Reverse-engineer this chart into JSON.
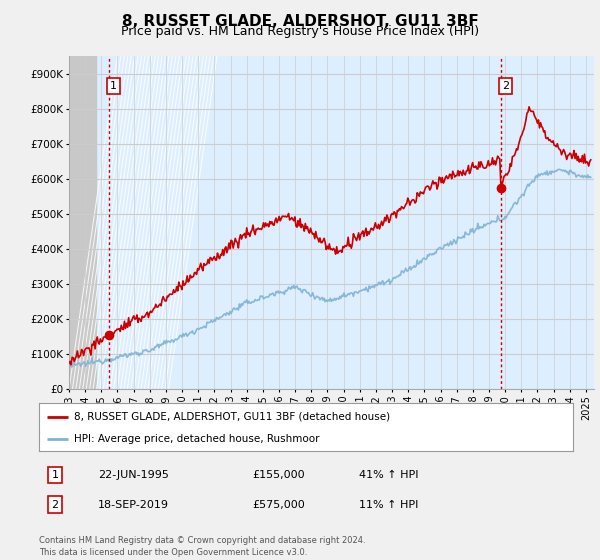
{
  "title": "8, RUSSET GLADE, ALDERSHOT, GU11 3BF",
  "subtitle": "Price paid vs. HM Land Registry's House Price Index (HPI)",
  "xlim_start": 1993.0,
  "xlim_end": 2025.5,
  "ylim": [
    0,
    950000
  ],
  "yticks": [
    0,
    100000,
    200000,
    300000,
    400000,
    500000,
    600000,
    700000,
    800000,
    900000
  ],
  "ytick_labels": [
    "£0",
    "£100K",
    "£200K",
    "£300K",
    "£400K",
    "£500K",
    "£600K",
    "£700K",
    "£800K",
    "£900K"
  ],
  "purchase1_date": 1995.47,
  "purchase1_price": 155000,
  "purchase1_label": "1",
  "purchase2_date": 2019.72,
  "purchase2_price": 575000,
  "purchase2_label": "2",
  "hpi_color": "#7fb3d3",
  "price_color": "#cc0000",
  "vline_color": "#cc0000",
  "bg_color": "#f0f0f0",
  "plot_bg_color": "#ddeeff",
  "hatch_bg_color": "#c8c8c8",
  "grid_color": "#cccccc",
  "legend_entry1": "8, RUSSET GLADE, ALDERSHOT, GU11 3BF (detached house)",
  "legend_entry2": "HPI: Average price, detached house, Rushmoor",
  "footnote": "Contains HM Land Registry data © Crown copyright and database right 2024.\nThis data is licensed under the Open Government Licence v3.0.",
  "table_row1": [
    "1",
    "22-JUN-1995",
    "£155,000",
    "41% ↑ HPI"
  ],
  "table_row2": [
    "2",
    "18-SEP-2019",
    "£575,000",
    "11% ↑ HPI"
  ],
  "title_fontsize": 11,
  "subtitle_fontsize": 9,
  "tick_fontsize": 7.5,
  "annotation_fontsize": 8
}
